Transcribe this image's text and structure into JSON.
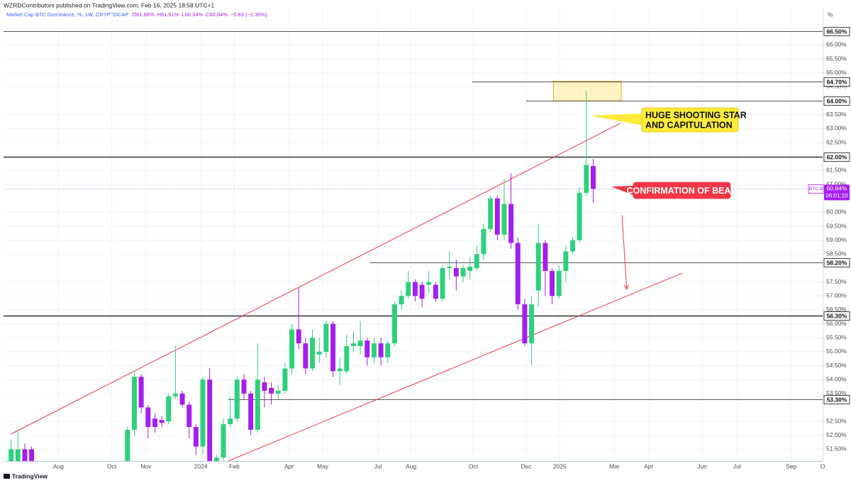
{
  "header": "WZRDContributors published on TradingView.com, Feb 16, 2025 18:58 UTC+1",
  "footer": "TradingView",
  "chart_data": {
    "type": "candlestick",
    "title": "Market Cap BTC Dominance, %, 1W, CRYPTOCAP",
    "legend_values": [
      "O61.66%",
      "H61.91%",
      "L60.34%",
      "C60.84%",
      "−0.83 (−1.35%)"
    ],
    "axis_unit": "%",
    "up_color": "#2dd17c",
    "down_color": "#a51df0",
    "open": [
      51.0,
      51.0,
      51.5,
      51.5,
      null,
      null,
      null,
      null,
      null,
      null,
      null,
      null,
      null,
      null,
      null,
      null,
      null,
      51.0,
      52.2,
      54.1,
      53.0,
      52.6,
      52.55,
      52.5,
      53.4,
      53.5,
      53.1,
      52.3,
      51.6,
      54.0,
      51.0,
      51.2,
      52.4,
      52.6,
      54.0,
      53.5,
      52.2,
      53.9,
      53.7,
      53.5,
      53.6,
      54.4,
      55.8,
      55.3,
      54.4,
      54.9,
      55.0,
      56.0,
      54.3,
      54.3,
      55.2,
      55.2,
      55.4,
      54.8,
      55.3,
      54.8,
      55.3,
      56.7,
      57.0,
      57.5,
      57.4,
      57.4,
      57.4,
      56.9,
      58.0,
      58.0,
      57.7,
      57.9,
      58.0,
      58.5,
      59.4,
      60.5,
      59.2,
      60.3,
      58.9,
      56.7,
      55.3,
      57.2,
      58.9,
      57.9,
      57.0,
      57.9,
      58.6,
      59.0,
      60.7,
      61.66
    ],
    "high": [
      51.85,
      52.15,
      51.7,
      51.6,
      null,
      null,
      null,
      null,
      null,
      null,
      null,
      null,
      null,
      null,
      null,
      null,
      null,
      52.3,
      54.3,
      54.2,
      53.1,
      52.8,
      52.7,
      53.5,
      55.2,
      53.6,
      53.2,
      52.4,
      54.1,
      54.4,
      51.3,
      52.6,
      53.4,
      54.1,
      54.2,
      53.6,
      55.3,
      54.1,
      53.9,
      53.8,
      54.6,
      56.0,
      57.3,
      55.5,
      55.8,
      55.5,
      56.1,
      56.1,
      54.8,
      55.6,
      55.7,
      56.1,
      55.5,
      55.5,
      55.5,
      55.4,
      56.8,
      57.2,
      57.9,
      57.6,
      57.5,
      57.9,
      57.5,
      58.1,
      58.6,
      58.3,
      58.1,
      58.4,
      58.8,
      59.6,
      60.6,
      60.6,
      61.2,
      61.4,
      59.1,
      56.9,
      57.0,
      59.6,
      59.0,
      58.0,
      58.1,
      58.8,
      59.1,
      60.9,
      64.35,
      61.91
    ],
    "low": [
      50.9,
      50.9,
      50.9,
      50.8,
      null,
      null,
      null,
      null,
      null,
      null,
      null,
      null,
      null,
      null,
      null,
      null,
      null,
      50.9,
      52.0,
      52.8,
      51.9,
      52.1,
      52.3,
      52.4,
      53.3,
      53.0,
      51.9,
      51.3,
      51.3,
      50.9,
      50.9,
      51.1,
      52.3,
      52.5,
      53.3,
      52.0,
      52.1,
      53.0,
      53.1,
      53.3,
      53.5,
      54.2,
      55.1,
      54.2,
      54.3,
      54.6,
      54.8,
      54.1,
      53.8,
      54.2,
      55.0,
      54.9,
      54.5,
      54.6,
      54.5,
      54.6,
      55.2,
      56.5,
      56.9,
      56.8,
      56.6,
      57.1,
      56.8,
      56.8,
      57.6,
      57.2,
      57.5,
      57.6,
      57.9,
      58.3,
      59.3,
      59.0,
      59.0,
      58.7,
      56.5,
      55.2,
      54.5,
      56.6,
      57.0,
      56.7,
      56.9,
      57.5,
      58.5,
      58.9,
      60.6,
      60.34
    ],
    "close": [
      51.5,
      51.5,
      51.0,
      50.9,
      null,
      null,
      null,
      null,
      null,
      null,
      null,
      null,
      null,
      null,
      null,
      null,
      null,
      52.2,
      54.1,
      53.0,
      52.3,
      52.3,
      52.45,
      53.4,
      53.5,
      53.1,
      52.3,
      51.6,
      54.0,
      51.0,
      51.2,
      52.4,
      52.6,
      54.0,
      53.5,
      52.2,
      54.0,
      53.6,
      53.5,
      53.6,
      54.4,
      55.8,
      55.3,
      54.4,
      55.5,
      55.0,
      56.0,
      54.3,
      54.4,
      55.2,
      55.3,
      55.4,
      54.8,
      55.3,
      54.8,
      55.3,
      56.7,
      57.0,
      57.5,
      57.0,
      56.9,
      57.5,
      56.9,
      58.0,
      58.05,
      57.7,
      58.0,
      58.05,
      58.5,
      59.4,
      60.5,
      59.2,
      60.3,
      58.9,
      56.7,
      55.3,
      56.7,
      58.9,
      57.9,
      57.0,
      57.9,
      58.6,
      59.0,
      60.7,
      61.7,
      60.84
    ],
    "xlim": [
      -1.1,
      118.5
    ],
    "xticks": [
      {
        "value": 6.9,
        "label": "Aug"
      },
      {
        "value": 14.7,
        "label": "Oct"
      },
      {
        "value": 19.7,
        "label": "Nov"
      },
      {
        "value": 27.7,
        "label": "2024"
      },
      {
        "value": 32.6,
        "label": "Feb"
      },
      {
        "value": 40.6,
        "label": "Apr"
      },
      {
        "value": 45.5,
        "label": "May"
      },
      {
        "value": 53.6,
        "label": "Jul"
      },
      {
        "value": 58.4,
        "label": "Aug"
      },
      {
        "value": 67.5,
        "label": "Oct"
      },
      {
        "value": 75.2,
        "label": "Dec"
      },
      {
        "value": 80.1,
        "label": "2025"
      },
      {
        "value": 88.1,
        "label": "Mar"
      },
      {
        "value": 93.1,
        "label": "Apr"
      },
      {
        "value": 100.9,
        "label": "Jun"
      },
      {
        "value": 106.0,
        "label": "Jul"
      },
      {
        "value": 113.9,
        "label": "Sep"
      },
      {
        "value": 118.5,
        "label": "O"
      }
    ],
    "ylim": [
      51.08,
      67.31
    ],
    "yticks": [
      {
        "value": 66.0,
        "label": "66.00%"
      },
      {
        "value": 65.5,
        "label": "65.50%"
      },
      {
        "value": 65.0,
        "label": "65.00%"
      },
      {
        "value": 64.5,
        "label": "64.50%"
      },
      {
        "value": 63.5,
        "label": "63.50%"
      },
      {
        "value": 63.0,
        "label": "63.00%"
      },
      {
        "value": 62.5,
        "label": "62.50%"
      },
      {
        "value": 61.5,
        "label": "61.50%"
      },
      {
        "value": 61.0,
        "label": "61.00%"
      },
      {
        "value": 60.0,
        "label": "60.00%"
      },
      {
        "value": 59.5,
        "label": "59.50%"
      },
      {
        "value": 59.0,
        "label": "59.00%"
      },
      {
        "value": 58.5,
        "label": "58.50%"
      },
      {
        "value": 57.5,
        "label": "57.50%"
      },
      {
        "value": 57.0,
        "label": "57.00%"
      },
      {
        "value": 56.5,
        "label": "56.50%"
      },
      {
        "value": 56.0,
        "label": "56.00%"
      },
      {
        "value": 55.5,
        "label": "55.50%"
      },
      {
        "value": 55.0,
        "label": "55.00%"
      },
      {
        "value": 54.5,
        "label": "54.50%"
      },
      {
        "value": 54.0,
        "label": "54.00%"
      },
      {
        "value": 53.5,
        "label": "53.50%"
      },
      {
        "value": 52.5,
        "label": "52.50%"
      },
      {
        "value": 52.0,
        "label": "52.00%"
      },
      {
        "value": 51.5,
        "label": "51.50%"
      }
    ],
    "grid": true,
    "levels": [
      {
        "value": 66.5,
        "label": "66.50%",
        "start": -1.1
      },
      {
        "value": 64.7,
        "label": "64.70%",
        "start": 67.3
      },
      {
        "value": 64.0,
        "label": "64.00%",
        "start": 75.2
      },
      {
        "value": 62.0,
        "label": "62.00%",
        "start": -1.1
      },
      {
        "value": 58.2,
        "label": "58.20%",
        "start": 52.4
      },
      {
        "value": 56.3,
        "label": "56.30%",
        "start": -1.1
      },
      {
        "value": 53.3,
        "label": "53.30%",
        "start": 31.7
      }
    ],
    "zone": {
      "x": [
        79.2,
        89.1
      ],
      "y": [
        64.0,
        64.7
      ]
    },
    "trendlines": [
      {
        "x": [
          0,
          89.0
        ],
        "y": [
          52.05,
          63.2
        ]
      },
      {
        "x": [
          31.7,
          98.0
        ],
        "y": [
          51.08,
          57.82
        ]
      }
    ],
    "arrow": {
      "x": [
        89.2,
        89.9
      ],
      "y": [
        59.9,
        57.24
      ]
    },
    "last_price": {
      "value": 60.84,
      "label": "60.84%",
      "symbol": "BTC.D",
      "countdown": "06:01:10"
    },
    "annotations": [
      {
        "lines": [
          "HUGE SHOOTING STAR",
          "AND CAPITULATION"
        ],
        "color": "#ffeb3b"
      },
      {
        "lines": [
          "CONFIRMATION OF BEAR"
        ],
        "color": "#f23645"
      }
    ]
  }
}
